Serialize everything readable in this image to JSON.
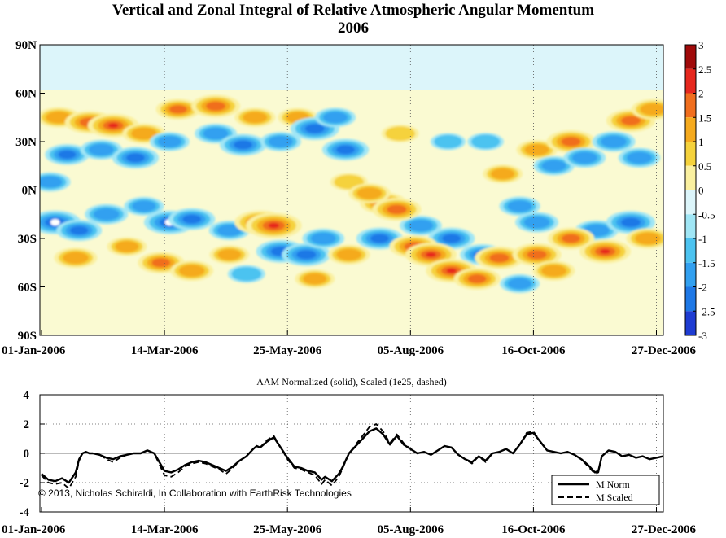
{
  "header": {
    "title": "Vertical and Zonal Integral of Relative Atmospheric Angular Momentum",
    "year": "2006"
  },
  "colors": {
    "neg3": "#0a0aa0",
    "neg25": "#1e3cd2",
    "neg2": "#1e78e6",
    "neg15": "#32a0f0",
    "neg1": "#4cc3f0",
    "neg05": "#a0e6f5",
    "neg0": "#dcf5fa",
    "pos0": "#fafad2",
    "pos05": "#faf0a0",
    "pos1": "#f5d23c",
    "pos15": "#f5aa1e",
    "pos2": "#f06e1e",
    "pos25": "#e6281e",
    "pos3": "#a00a0a"
  },
  "chart_data": [
    {
      "type": "heatmap",
      "title": "Vertical and Zonal Integral of Relative Atmospheric Angular Momentum",
      "subtitle": "2006",
      "x_ticks": [
        "01-Jan-2006",
        "14-Mar-2006",
        "25-May-2006",
        "05-Aug-2006",
        "16-Oct-2006",
        "27-Dec-2006"
      ],
      "x_tick_days": [
        0,
        72,
        144,
        216,
        288,
        360
      ],
      "y_ticks": [
        "90N",
        "60N",
        "30N",
        "0N",
        "30S",
        "60S",
        "90S"
      ],
      "y_tick_values": [
        90,
        60,
        30,
        0,
        -30,
        -60,
        -90
      ],
      "colorbar_ticks": [
        "3",
        "2.5",
        "2",
        "1.5",
        "1",
        "0.5",
        "0",
        "-0.5",
        "-1",
        "-1.5",
        "-2",
        "-2.5",
        "-3"
      ],
      "clim": [
        -3,
        3
      ],
      "blobs": [
        {
          "day": 10,
          "lat": 45,
          "v": 1.5
        },
        {
          "day": 28,
          "lat": 42,
          "v": 2.0
        },
        {
          "day": 42,
          "lat": 40,
          "v": 2.2
        },
        {
          "day": 60,
          "lat": 35,
          "v": 1.5
        },
        {
          "day": 80,
          "lat": 50,
          "v": 1.6
        },
        {
          "day": 102,
          "lat": 52,
          "v": 2.0
        },
        {
          "day": 125,
          "lat": 45,
          "v": 1.3
        },
        {
          "day": 150,
          "lat": 45,
          "v": 1.2
        },
        {
          "day": 210,
          "lat": 35,
          "v": 1.0
        },
        {
          "day": 290,
          "lat": 25,
          "v": 1.3
        },
        {
          "day": 310,
          "lat": 30,
          "v": 2.0
        },
        {
          "day": 345,
          "lat": 43,
          "v": 2.0
        },
        {
          "day": 358,
          "lat": 50,
          "v": 1.5
        },
        {
          "day": 15,
          "lat": 22,
          "v": -1.6
        },
        {
          "day": 35,
          "lat": 25,
          "v": -1.4
        },
        {
          "day": 55,
          "lat": 20,
          "v": -1.8
        },
        {
          "day": 75,
          "lat": 30,
          "v": -1.2
        },
        {
          "day": 102,
          "lat": 35,
          "v": -1.4
        },
        {
          "day": 118,
          "lat": 28,
          "v": -1.8
        },
        {
          "day": 140,
          "lat": 30,
          "v": -1.3
        },
        {
          "day": 160,
          "lat": 38,
          "v": -2.0
        },
        {
          "day": 172,
          "lat": 45,
          "v": -1.3
        },
        {
          "day": 178,
          "lat": 25,
          "v": -1.8
        },
        {
          "day": 238,
          "lat": 30,
          "v": -0.8
        },
        {
          "day": 260,
          "lat": 30,
          "v": -0.9
        },
        {
          "day": 300,
          "lat": 15,
          "v": -1.3
        },
        {
          "day": 318,
          "lat": 20,
          "v": -1.4
        },
        {
          "day": 335,
          "lat": 30,
          "v": -1.5
        },
        {
          "day": 350,
          "lat": 20,
          "v": -1.4
        },
        {
          "day": 5,
          "lat": 5,
          "v": -1.3
        },
        {
          "day": 8,
          "lat": -20,
          "v": -2.2
        },
        {
          "day": 22,
          "lat": -25,
          "v": -1.7
        },
        {
          "day": 38,
          "lat": -15,
          "v": -1.5
        },
        {
          "day": 60,
          "lat": -10,
          "v": -1.2
        },
        {
          "day": 75,
          "lat": -20,
          "v": -2.2
        },
        {
          "day": 88,
          "lat": -18,
          "v": -1.8
        },
        {
          "day": 110,
          "lat": -25,
          "v": -1.3
        },
        {
          "day": 140,
          "lat": -38,
          "v": -2.0
        },
        {
          "day": 155,
          "lat": -40,
          "v": -2.0
        },
        {
          "day": 165,
          "lat": -30,
          "v": -1.4
        },
        {
          "day": 198,
          "lat": -30,
          "v": -1.8
        },
        {
          "day": 222,
          "lat": -22,
          "v": -1.4
        },
        {
          "day": 240,
          "lat": -30,
          "v": -1.8
        },
        {
          "day": 258,
          "lat": -40,
          "v": -1.6
        },
        {
          "day": 280,
          "lat": -10,
          "v": -1.3
        },
        {
          "day": 290,
          "lat": -20,
          "v": -1.5
        },
        {
          "day": 325,
          "lat": -25,
          "v": -1.5
        },
        {
          "day": 345,
          "lat": -20,
          "v": -2.0
        },
        {
          "day": 280,
          "lat": -58,
          "v": -1.2
        },
        {
          "day": 120,
          "lat": -52,
          "v": -1.0
        },
        {
          "day": 20,
          "lat": -42,
          "v": 1.5
        },
        {
          "day": 50,
          "lat": -35,
          "v": 1.2
        },
        {
          "day": 70,
          "lat": -45,
          "v": 1.8
        },
        {
          "day": 88,
          "lat": -50,
          "v": 1.5
        },
        {
          "day": 110,
          "lat": -40,
          "v": 1.2
        },
        {
          "day": 128,
          "lat": -20,
          "v": 2.2
        },
        {
          "day": 136,
          "lat": -22,
          "v": 2.6
        },
        {
          "day": 160,
          "lat": -55,
          "v": 1.2
        },
        {
          "day": 180,
          "lat": -40,
          "v": 1.4
        },
        {
          "day": 200,
          "lat": -8,
          "v": 1.8
        },
        {
          "day": 208,
          "lat": -12,
          "v": 2.0
        },
        {
          "day": 218,
          "lat": -35,
          "v": 2.0
        },
        {
          "day": 228,
          "lat": -40,
          "v": 2.2
        },
        {
          "day": 240,
          "lat": -50,
          "v": 2.2
        },
        {
          "day": 255,
          "lat": -55,
          "v": 1.8
        },
        {
          "day": 268,
          "lat": -42,
          "v": 2.0
        },
        {
          "day": 290,
          "lat": -40,
          "v": 2.0
        },
        {
          "day": 310,
          "lat": -30,
          "v": 1.8
        },
        {
          "day": 330,
          "lat": -38,
          "v": 2.2
        },
        {
          "day": 355,
          "lat": -30,
          "v": 1.5
        },
        {
          "day": 300,
          "lat": -50,
          "v": 1.4
        },
        {
          "day": 180,
          "lat": 5,
          "v": 1.0
        },
        {
          "day": 192,
          "lat": -2,
          "v": 1.4
        },
        {
          "day": 270,
          "lat": 10,
          "v": 1.2
        }
      ]
    },
    {
      "type": "line",
      "title": "AAM Normalized (solid), Scaled (1e25, dashed)",
      "x_ticks": [
        "01-Jan-2006",
        "14-Mar-2006",
        "25-May-2006",
        "05-Aug-2006",
        "16-Oct-2006",
        "27-Dec-2006"
      ],
      "x_tick_days": [
        0,
        72,
        144,
        216,
        288,
        360
      ],
      "ylim": [
        -4,
        4
      ],
      "y_ticks": [
        "4",
        "2",
        "0",
        "-2",
        "-4"
      ],
      "y_tick_values": [
        4,
        2,
        0,
        -2,
        -4
      ],
      "series": [
        {
          "name": "M Norm",
          "style": "solid",
          "x": [
            0,
            4,
            8,
            12,
            16,
            20,
            22,
            24,
            26,
            28,
            30,
            34,
            38,
            42,
            46,
            50,
            54,
            58,
            62,
            66,
            70,
            72,
            76,
            80,
            84,
            88,
            92,
            96,
            100,
            104,
            108,
            112,
            116,
            120,
            124,
            126,
            128,
            132,
            136,
            140,
            144,
            148,
            152,
            156,
            160,
            164,
            166,
            170,
            174,
            176,
            180,
            184,
            188,
            192,
            196,
            200,
            204,
            208,
            212,
            216,
            220,
            224,
            228,
            232,
            236,
            240,
            244,
            248,
            252,
            256,
            260,
            264,
            268,
            272,
            276,
            280,
            284,
            288,
            292,
            296,
            300,
            304,
            308,
            312,
            316,
            320,
            324,
            326,
            328,
            332,
            336,
            340,
            344,
            348,
            352,
            356,
            360,
            364
          ],
          "y": [
            -1.4,
            -1.8,
            -1.9,
            -1.7,
            -2.0,
            -1.3,
            -0.4,
            0.0,
            0.1,
            0.0,
            0.0,
            -0.1,
            -0.3,
            -0.4,
            -0.2,
            -0.1,
            0.0,
            0.0,
            0.2,
            0.0,
            -0.8,
            -1.2,
            -1.3,
            -1.1,
            -0.8,
            -0.6,
            -0.5,
            -0.6,
            -0.8,
            -1.0,
            -1.2,
            -0.9,
            -0.5,
            -0.2,
            0.3,
            0.5,
            0.4,
            0.8,
            1.1,
            0.4,
            -0.3,
            -0.9,
            -1.0,
            -1.2,
            -1.3,
            -1.8,
            -1.6,
            -1.9,
            -1.4,
            -1.0,
            0.0,
            0.5,
            1.0,
            1.5,
            1.7,
            1.3,
            0.6,
            1.2,
            0.6,
            0.3,
            0.0,
            0.1,
            -0.1,
            0.2,
            0.5,
            0.4,
            -0.1,
            -0.4,
            -0.6,
            -0.2,
            -0.5,
            0.0,
            0.1,
            0.3,
            0.0,
            0.6,
            1.3,
            1.4,
            0.8,
            0.2,
            0.1,
            0.0,
            0.1,
            -0.1,
            -0.4,
            -0.8,
            -1.3,
            -1.2,
            -0.2,
            0.2,
            0.1,
            -0.2,
            -0.1,
            -0.3,
            -0.2,
            -0.4,
            -0.3,
            -0.2
          ]
        },
        {
          "name": "M Scaled",
          "style": "dashed",
          "x": [
            0,
            4,
            8,
            12,
            16,
            20,
            22,
            24,
            26,
            28,
            30,
            34,
            38,
            42,
            46,
            50,
            54,
            58,
            62,
            66,
            70,
            72,
            76,
            80,
            84,
            88,
            92,
            96,
            100,
            104,
            108,
            112,
            116,
            120,
            124,
            126,
            128,
            132,
            136,
            140,
            144,
            148,
            152,
            156,
            160,
            164,
            166,
            170,
            174,
            176,
            180,
            184,
            188,
            192,
            196,
            200,
            204,
            208,
            212,
            216,
            220,
            224,
            228,
            232,
            236,
            240,
            244,
            248,
            252,
            256,
            260,
            264,
            268,
            272,
            276,
            280,
            284,
            288,
            292,
            296,
            300,
            304,
            308,
            312,
            316,
            320,
            324,
            326,
            328,
            332,
            336,
            340,
            344,
            348,
            352,
            356,
            360,
            364
          ],
          "y": [
            -1.5,
            -2.0,
            -2.1,
            -2.0,
            -2.4,
            -1.6,
            -0.5,
            0.0,
            0.1,
            0.0,
            0.0,
            -0.1,
            -0.4,
            -0.6,
            -0.3,
            -0.1,
            0.0,
            0.0,
            0.2,
            0.0,
            -1.0,
            -1.5,
            -1.6,
            -1.3,
            -0.9,
            -0.7,
            -0.6,
            -0.7,
            -0.9,
            -1.1,
            -1.4,
            -1.0,
            -0.5,
            -0.2,
            0.3,
            0.5,
            0.4,
            0.9,
            1.2,
            0.4,
            -0.4,
            -1.0,
            -1.1,
            -1.3,
            -1.5,
            -2.1,
            -1.8,
            -2.2,
            -1.6,
            -1.1,
            0.0,
            0.6,
            1.2,
            1.8,
            2.0,
            1.5,
            0.7,
            1.3,
            0.7,
            0.3,
            0.0,
            0.1,
            -0.1,
            0.2,
            0.5,
            0.4,
            -0.1,
            -0.4,
            -0.7,
            -0.2,
            -0.6,
            0.0,
            0.1,
            0.3,
            0.0,
            0.6,
            1.4,
            1.5,
            0.8,
            0.2,
            0.1,
            0.0,
            0.1,
            -0.1,
            -0.4,
            -0.9,
            -1.4,
            -1.3,
            -0.2,
            0.2,
            0.1,
            -0.2,
            -0.1,
            -0.3,
            -0.2,
            -0.4,
            -0.3,
            -0.2
          ]
        }
      ],
      "legend_position": "bottom-right",
      "grid": true
    }
  ],
  "footer": {
    "copyright": "© 2013, Nicholas Schiraldi, In Collaboration with EarthRisk Technologies"
  }
}
